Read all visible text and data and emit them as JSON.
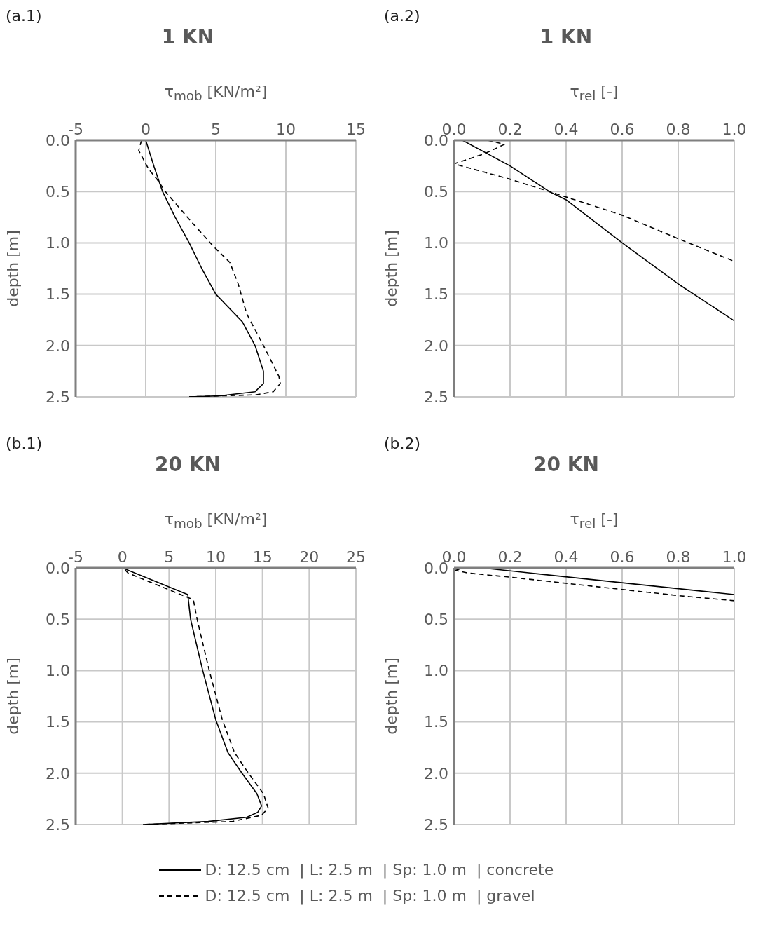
{
  "chart_data": [
    {
      "type": "line",
      "title": "1 KN",
      "annotations": [
        "(a.1)"
      ],
      "xlabel": "τ$_{mob}$ [KN/m²]",
      "ylabel": "depth [m]",
      "xlim": [
        -5,
        15
      ],
      "xticks": [
        -5,
        0,
        5,
        10,
        15
      ],
      "ylim": [
        2.5,
        0
      ],
      "yticks": [
        {
          "value": 0,
          "label": "0.0"
        },
        {
          "value": 0.5,
          "label": "0.5"
        },
        {
          "value": 1,
          "label": "1.0"
        },
        {
          "value": 1.5,
          "label": "1.5"
        },
        {
          "value": 2,
          "label": "2.0"
        },
        {
          "value": 2.5,
          "label": "2.5"
        }
      ],
      "grid": true,
      "series": [
        {
          "color": "#000000",
          "line_style": "solid",
          "x": [
            0,
            0.6,
            1.2,
            2.1,
            3.1,
            4.0,
            5.0,
            6.9,
            7.8,
            8.4,
            8.4,
            7.8,
            5.3,
            3.1
          ],
          "values": [
            0,
            0.26,
            0.5,
            0.75,
            1.0,
            1.25,
            1.5,
            1.77,
            2.0,
            2.25,
            2.37,
            2.45,
            2.49,
            2.5
          ]
        },
        {
          "color": "#000000",
          "line_style": "dashed",
          "x": [
            -0.3,
            -0.5,
            0.2,
            0.8,
            1.4,
            3.1,
            4.8,
            6.0,
            6.6,
            7.2,
            8.4,
            9.5,
            9.6,
            9.1,
            7.9,
            3.1
          ],
          "values": [
            0,
            0.1,
            0.28,
            0.38,
            0.5,
            0.77,
            1.03,
            1.19,
            1.4,
            1.69,
            2.0,
            2.3,
            2.37,
            2.45,
            2.48,
            2.5
          ]
        }
      ]
    },
    {
      "type": "line",
      "title": "1 KN",
      "annotations": [
        "(a.2)"
      ],
      "xlabel": "τ$_{rel}$ [-]",
      "ylabel": "depth [m]",
      "xlim": [
        0,
        1
      ],
      "xticks": [
        {
          "value": 0,
          "label": "0.0"
        },
        {
          "value": 0.2,
          "label": "0.2"
        },
        {
          "value": 0.4,
          "label": "0.4"
        },
        {
          "value": 0.6,
          "label": "0.6"
        },
        {
          "value": 0.8,
          "label": "0.8"
        },
        {
          "value": 1,
          "label": "1.0"
        }
      ],
      "ylim": [
        2.5,
        0
      ],
      "yticks": [
        {
          "value": 0,
          "label": "0.0"
        },
        {
          "value": 0.5,
          "label": "0.5"
        },
        {
          "value": 1,
          "label": "1.0"
        },
        {
          "value": 1.5,
          "label": "1.5"
        },
        {
          "value": 2,
          "label": "2.0"
        },
        {
          "value": 2.5,
          "label": "2.5"
        }
      ],
      "grid": true,
      "series": [
        {
          "color": "#000000",
          "line_style": "solid",
          "x": [
            0.03,
            0.2,
            0.34,
            0.4,
            0.6,
            0.8,
            1.0,
            1.0
          ],
          "values": [
            0,
            0.25,
            0.5,
            0.58,
            1.0,
            1.4,
            1.76,
            2.5
          ]
        },
        {
          "color": "#000000",
          "line_style": "dashed",
          "x": [
            0.12,
            0.18,
            0.11,
            0.0,
            0.04,
            0.2,
            0.34,
            0.6,
            0.8,
            1.0,
            1.0
          ],
          "values": [
            0,
            0.04,
            0.13,
            0.23,
            0.26,
            0.38,
            0.5,
            0.73,
            0.96,
            1.18,
            2.5
          ]
        }
      ]
    },
    {
      "type": "line",
      "title": "20 KN",
      "annotations": [
        "(b.1)"
      ],
      "xlabel": "τ$_{mob}$ [KN/m²]",
      "ylabel": "depth [m]",
      "xlim": [
        -5,
        25
      ],
      "xticks": [
        -5,
        0,
        5,
        10,
        15,
        20,
        25
      ],
      "ylim": [
        2.5,
        0
      ],
      "yticks": [
        {
          "value": 0,
          "label": "0.0"
        },
        {
          "value": 0.5,
          "label": "0.5"
        },
        {
          "value": 1,
          "label": "1.0"
        },
        {
          "value": 1.5,
          "label": "1.5"
        },
        {
          "value": 2,
          "label": "2.0"
        },
        {
          "value": 2.5,
          "label": "2.5"
        }
      ],
      "grid": true,
      "series": [
        {
          "color": "#000000",
          "line_style": "solid",
          "x": [
            0,
            7.0,
            7.3,
            8.6,
            10,
            11.3,
            12.8,
            14.4,
            14.9,
            14.5,
            13.3,
            9.2,
            2.2
          ],
          "values": [
            0,
            0.26,
            0.5,
            1.0,
            1.48,
            1.8,
            2.0,
            2.2,
            2.32,
            2.38,
            2.43,
            2.47,
            2.5
          ]
        },
        {
          "color": "#000000",
          "line_style": "dashed",
          "x": [
            0.3,
            0.6,
            7.6,
            8.0,
            9.3,
            10.7,
            12.0,
            13.5,
            15.1,
            15.6,
            14.9,
            11.8,
            2.2
          ],
          "values": [
            0.02,
            0.05,
            0.31,
            0.5,
            1.0,
            1.48,
            1.8,
            2.0,
            2.2,
            2.34,
            2.41,
            2.47,
            2.5
          ]
        }
      ]
    },
    {
      "type": "line",
      "title": "20 KN",
      "annotations": [
        "(b.2)"
      ],
      "xlabel": "τ$_{rel}$ [-]",
      "ylabel": "depth [m]",
      "xlim": [
        0,
        1
      ],
      "xticks": [
        {
          "value": 0,
          "label": "0.0"
        },
        {
          "value": 0.2,
          "label": "0.2"
        },
        {
          "value": 0.4,
          "label": "0.4"
        },
        {
          "value": 0.6,
          "label": "0.6"
        },
        {
          "value": 0.8,
          "label": "0.8"
        },
        {
          "value": 1,
          "label": "1.0"
        }
      ],
      "ylim": [
        2.5,
        0
      ],
      "yticks": [
        {
          "value": 0,
          "label": "0.0"
        },
        {
          "value": 0.5,
          "label": "0.5"
        },
        {
          "value": 1,
          "label": "1.0"
        },
        {
          "value": 1.5,
          "label": "1.5"
        },
        {
          "value": 2,
          "label": "2.0"
        },
        {
          "value": 2.5,
          "label": "2.5"
        }
      ],
      "grid": true,
      "legend": "bottom",
      "series": [
        {
          "name": "D: 12.5 cm  | L: 2.5 m  | Sp: 1.0 m  | concrete",
          "color": "#000000",
          "line_style": "solid",
          "x": [
            0,
            0.03,
            0.1,
            1.0,
            1.0
          ],
          "values": [
            0.03,
            0,
            0,
            0.26,
            2.5
          ]
        },
        {
          "name": "D: 12.5 cm  | L: 2.5 m  | Sp: 1.0 m  | gravel",
          "color": "#000000",
          "line_style": "dashed",
          "x": [
            0,
            0.05,
            0.2,
            0.4,
            0.6,
            0.8,
            1.0,
            1.0
          ],
          "values": [
            0.02,
            0.05,
            0.09,
            0.15,
            0.21,
            0.27,
            0.32,
            2.5
          ]
        }
      ]
    }
  ]
}
